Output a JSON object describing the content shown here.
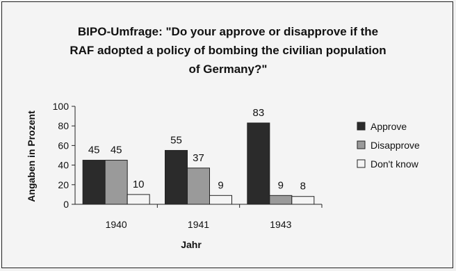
{
  "chart_data": {
    "type": "bar",
    "title_lines": [
      "BIPO-Umfrage: \"Do your approve or disapprove if the",
      "RAF adopted a policy of bombing the civilian population",
      "of Germany?\""
    ],
    "xlabel": "Jahr",
    "ylabel": "Angaben in Prozent",
    "categories": [
      "1940",
      "1941",
      "1943"
    ],
    "ylim": [
      0,
      100
    ],
    "yticks": [
      0,
      20,
      40,
      60,
      80,
      100
    ],
    "series": [
      {
        "name": "Approve",
        "color": "#2b2b2b",
        "values": [
          45,
          55,
          83
        ]
      },
      {
        "name": "Disapprove",
        "color": "#9a9a9a",
        "values": [
          45,
          37,
          9
        ]
      },
      {
        "name": "Don't know",
        "color": "#f4f4f4",
        "values": [
          10,
          9,
          8
        ]
      }
    ],
    "legend_position": "right",
    "grid": false
  }
}
